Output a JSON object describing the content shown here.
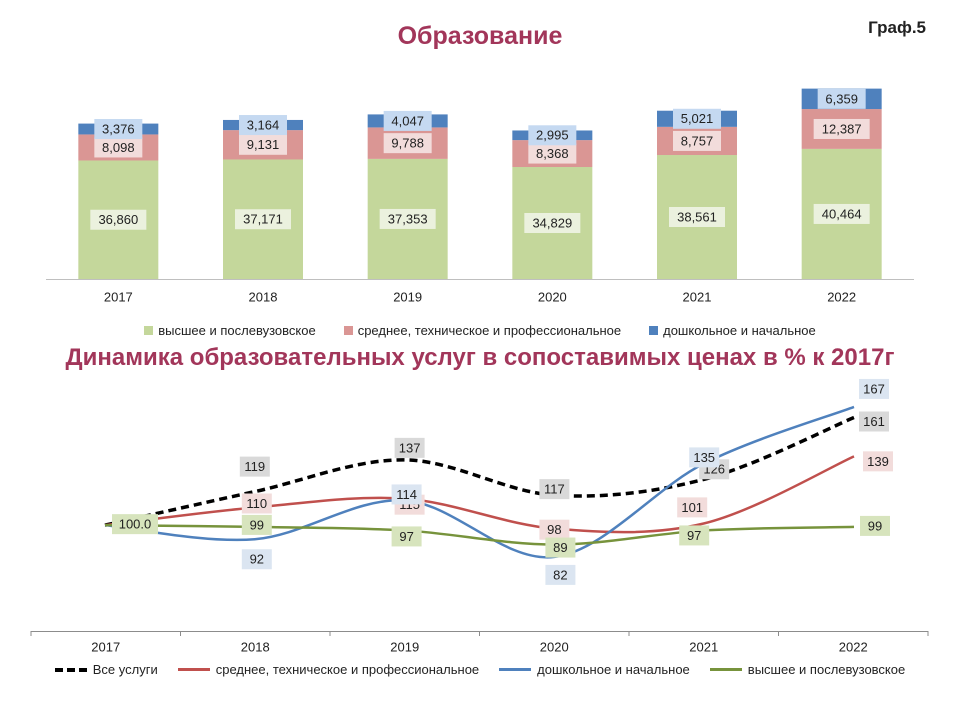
{
  "page": {
    "graf_label": "Граф.5"
  },
  "chart_data": [
    {
      "type": "bar",
      "stacked": true,
      "title": "Образование",
      "categories": [
        "2017",
        "2018",
        "2019",
        "2020",
        "2021",
        "2022"
      ],
      "value_labels": {
        "higher": [
          "36,860",
          "37,171",
          "37,353",
          "34,829",
          "38,561",
          "40,464"
        ],
        "secondary": [
          "8,098",
          "9,131",
          "9,788",
          "8,368",
          "8,757",
          "12,387"
        ],
        "preschool": [
          "3,376",
          "3,164",
          "4,047",
          "2,995",
          "5,021",
          "6,359"
        ]
      },
      "series": [
        {
          "name": "высшее и послевузовское",
          "key": "higher",
          "color": "#c4d79b",
          "label_bg": "#ebf1de",
          "values": [
            36860,
            37171,
            37353,
            34829,
            38561,
            40464
          ]
        },
        {
          "name": "среднее, техническое и профессиональное",
          "key": "secondary",
          "color": "#da9694",
          "label_bg": "#f2dcdb",
          "values": [
            8098,
            9131,
            9788,
            8368,
            8757,
            12387
          ]
        },
        {
          "name": "дошкольное и начальное",
          "key": "preschool",
          "color": "#4f81bd",
          "label_bg": "#c5d9f1",
          "values": [
            3376,
            3164,
            4047,
            2995,
            5021,
            6359
          ]
        }
      ],
      "ylim": [
        0,
        65000
      ],
      "legend": "bottom",
      "grid": false
    },
    {
      "type": "line",
      "title": "Динамика образовательных услуг в сопоставимых ценах в % к 2017г",
      "categories": [
        "2017",
        "2018",
        "2019",
        "2020",
        "2021",
        "2022"
      ],
      "start_label": "100.0",
      "series": [
        {
          "name": "Все услуги",
          "key": "all",
          "color": "#000000",
          "label_bg": "#d9d9d9",
          "dashed": true,
          "values": [
            100,
            119,
            137,
            117,
            126,
            161
          ],
          "labels": [
            "",
            "119",
            "137",
            "117",
            "126",
            "161"
          ]
        },
        {
          "name": "среднее, техническое и профессиональное",
          "key": "secondary",
          "color": "#c0504d",
          "label_bg": "#f2dcdb",
          "values": [
            100,
            110,
            115,
            98,
            101,
            139
          ],
          "labels": [
            "",
            "110",
            "115",
            "98",
            "101",
            "139"
          ]
        },
        {
          "name": "дошкольное и начальное",
          "key": "preschool",
          "color": "#4f81bd",
          "label_bg": "#dbe5f1",
          "values": [
            100,
            92,
            114,
            82,
            135,
            167
          ],
          "labels": [
            "",
            "92",
            "114",
            "82",
            "135",
            "167"
          ]
        },
        {
          "name": "высшее и послевузовское",
          "key": "higher",
          "color": "#77933c",
          "label_bg": "#d7e4bd",
          "values": [
            100,
            99,
            97,
            89,
            97,
            99
          ],
          "labels": [
            "",
            "99",
            "97",
            "89",
            "97",
            "99"
          ]
        }
      ],
      "ylim": [
        40,
        180
      ],
      "legend": "bottom",
      "grid": false
    }
  ]
}
